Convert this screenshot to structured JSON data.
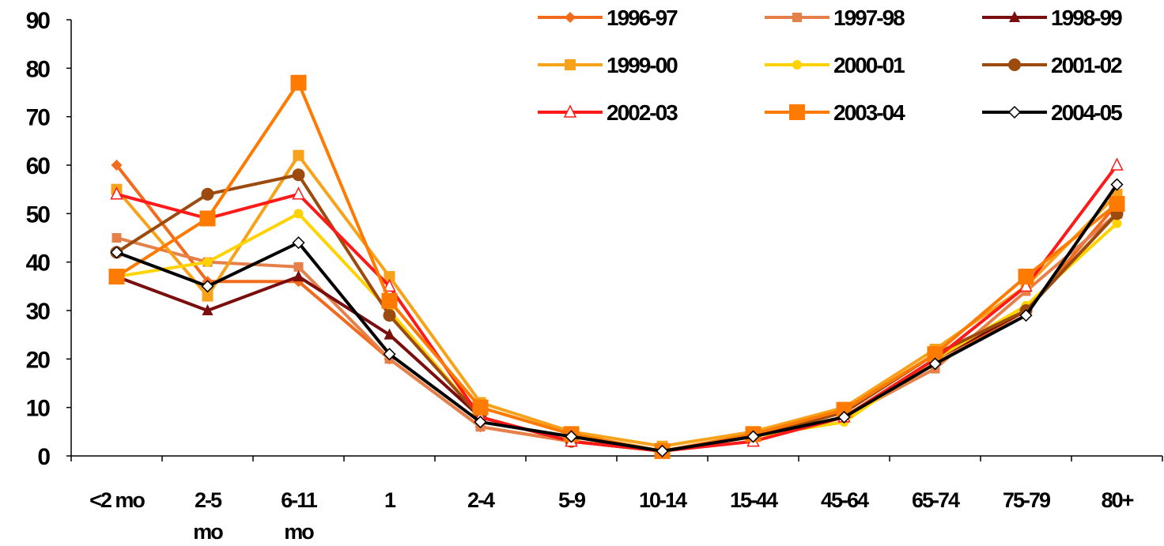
{
  "chart_data": {
    "type": "line",
    "title": "",
    "xlabel": "",
    "ylabel": "",
    "categories": [
      [
        "<2 mo"
      ],
      [
        "2-5",
        "mo"
      ],
      [
        "6-11",
        "mo"
      ],
      [
        "1"
      ],
      [
        "2-4"
      ],
      [
        "5-9"
      ],
      [
        "10-14"
      ],
      [
        "15-44"
      ],
      [
        "45-64"
      ],
      [
        "65-74"
      ],
      [
        "75-79"
      ],
      [
        "80+"
      ]
    ],
    "ylim": [
      0,
      90
    ],
    "yticks": [
      "0",
      "10",
      "20",
      "30",
      "40",
      "50",
      "60",
      "70",
      "80",
      "90"
    ],
    "grid": false,
    "legend_position": "top-right",
    "series": [
      {
        "name": "1996-97",
        "color": "#F26A1B",
        "marker": "diamond",
        "values": [
          60,
          36,
          36,
          20,
          6,
          3,
          1,
          4,
          8,
          19,
          30,
          52
        ]
      },
      {
        "name": "1997-98",
        "color": "#E6804A",
        "marker": "square",
        "values": [
          45,
          40,
          39,
          20,
          6,
          3,
          1,
          4,
          8,
          18,
          34,
          50
        ]
      },
      {
        "name": "1998-99",
        "color": "#7A0E0E",
        "marker": "triangle",
        "values": [
          37,
          30,
          37,
          25,
          8,
          3,
          1,
          4,
          8,
          20,
          30,
          50
        ]
      },
      {
        "name": "1999-00",
        "color": "#F7A21B",
        "marker": "square-small",
        "values": [
          55,
          33,
          62,
          37,
          11,
          5,
          2,
          5,
          10,
          22,
          35,
          54
        ]
      },
      {
        "name": "2000-01",
        "color": "#FFD200",
        "marker": "circle",
        "values": [
          37,
          40,
          50,
          30,
          8,
          3,
          1,
          4,
          7,
          20,
          31,
          48
        ]
      },
      {
        "name": "2001-02",
        "color": "#9C4A0E",
        "marker": "circle-large",
        "values": [
          42,
          54,
          58,
          29,
          8,
          3,
          1,
          4,
          9,
          21,
          30,
          50
        ]
      },
      {
        "name": "2002-03",
        "color": "#FF1A1A",
        "marker": "triangle-open",
        "values": [
          54,
          49,
          54,
          35,
          8,
          3,
          1,
          3,
          8,
          20,
          35,
          60
        ]
      },
      {
        "name": "2003-04",
        "color": "#FF7A00",
        "marker": "square-large",
        "values": [
          37,
          49,
          77,
          32,
          10,
          4.5,
          1,
          4.5,
          9.5,
          21,
          37,
          52
        ]
      },
      {
        "name": "2004-05",
        "color": "#000000",
        "marker": "diamond-open",
        "values": [
          42,
          35,
          44,
          21,
          7,
          4,
          1,
          4,
          8,
          19,
          29,
          56
        ]
      }
    ]
  }
}
